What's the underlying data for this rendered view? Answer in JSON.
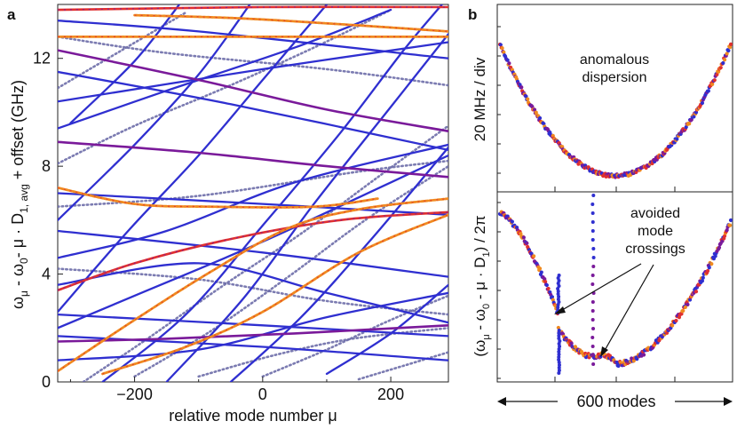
{
  "panel_a": {
    "letter": "a",
    "ylabel_main": "ω",
    "ylabel_sub1": "μ",
    "ylabel_mid1": " - ω",
    "ylabel_sub2": "0",
    "ylabel_mid2": "- μ · D",
    "ylabel_sub3": "1, avg",
    "ylabel_tail": " + offset (GHz)",
    "xlabel": "relative mode number μ"
  },
  "panel_b": {
    "letter": "b",
    "annotation_top_1": "anomalous",
    "annotation_top_2": "dispersion",
    "annotation_bottom_1": "avoided",
    "annotation_bottom_2": "mode",
    "annotation_bottom_3": "crossings",
    "ylabel_upper": "20 MHz / div",
    "ylabel_lower": "(ω",
    "ylabel_lower_sub1": "μ",
    "ylabel_lower_mid": " - ω",
    "ylabel_lower_sub2": "0",
    "ylabel_lower_mid2": " - μ · D",
    "ylabel_lower_sub3": "1",
    "ylabel_lower_tail": ") / 2π",
    "xlabel": "600 modes"
  },
  "colors": {
    "blue": "#2f2fd0",
    "slate": "#6d6da8",
    "purple": "#7a1a9a",
    "red": "#e03030",
    "orange": "#f08a20"
  },
  "chart_data": [
    {
      "type": "scatter",
      "panel": "a",
      "xlabel": "relative mode number μ",
      "ylabel": "ω_μ - ω_0 - μ · D_1, avg + offset (GHz)",
      "xlim": [
        -320,
        290
      ],
      "ylim": [
        0,
        14
      ],
      "xticks": [
        -200,
        0,
        200
      ],
      "xtick_labels": [
        "−200",
        "0",
        "200"
      ],
      "yticks": [
        0,
        4,
        8,
        12
      ],
      "ytick_labels": [
        "0",
        "4",
        "8",
        "12"
      ],
      "series": [
        {
          "color": "blue",
          "points": [
            [
              -320,
              13.4
            ],
            [
              -100,
              13.0
            ],
            [
              290,
              12.0
            ]
          ]
        },
        {
          "color": "blue",
          "points": [
            [
              -320,
              11.5
            ],
            [
              -50,
              10.3
            ],
            [
              290,
              8.6
            ]
          ]
        },
        {
          "color": "blue",
          "points": [
            [
              -320,
              10.4
            ],
            [
              0,
              11.6
            ],
            [
              290,
              12.6
            ]
          ]
        },
        {
          "color": "blue",
          "points": [
            [
              -320,
              7.0
            ],
            [
              0,
              6.6
            ],
            [
              290,
              6.2
            ]
          ]
        },
        {
          "color": "blue",
          "points": [
            [
              -320,
              5.6
            ],
            [
              0,
              4.8
            ],
            [
              290,
              3.9
            ]
          ]
        },
        {
          "color": "blue",
          "points": [
            [
              -320,
              3.6
            ],
            [
              -100,
              4.4
            ],
            [
              100,
              3.3
            ],
            [
              290,
              2.2
            ]
          ]
        },
        {
          "color": "blue",
          "points": [
            [
              -320,
              2.5
            ],
            [
              0,
              2.1
            ],
            [
              290,
              1.7
            ]
          ]
        },
        {
          "color": "blue",
          "points": [
            [
              -320,
              1.7
            ],
            [
              0,
              1.3
            ],
            [
              290,
              0.8
            ]
          ]
        },
        {
          "color": "blue",
          "points": [
            [
              -320,
              0.8
            ],
            [
              -100,
              1.2
            ],
            [
              100,
              2.4
            ],
            [
              290,
              3.3
            ]
          ]
        },
        {
          "color": "blue",
          "points": [
            [
              -320,
              4.6
            ],
            [
              -150,
              5.6
            ],
            [
              50,
              7.4
            ],
            [
              290,
              8.8
            ]
          ]
        },
        {
          "color": "blue",
          "points": [
            [
              -320,
              9.4
            ],
            [
              -150,
              10.8
            ],
            [
              50,
              12.4
            ],
            [
              200,
              13.8
            ]
          ]
        },
        {
          "color": "blue",
          "points": [
            [
              -320,
              2.0
            ],
            [
              -200,
              3.2
            ],
            [
              0,
              5.2
            ],
            [
              200,
              7.4
            ],
            [
              290,
              8.4
            ]
          ]
        },
        {
          "color": "blue",
          "points": [
            [
              -250,
              0.0
            ],
            [
              -120,
              2.5
            ],
            [
              0,
              5.8
            ],
            [
              120,
              9.2
            ],
            [
              220,
              12.3
            ],
            [
              280,
              14.0
            ]
          ]
        },
        {
          "color": "blue",
          "points": [
            [
              -150,
              0.0
            ],
            [
              -30,
              3.1
            ],
            [
              80,
              6.6
            ],
            [
              200,
              10.2
            ],
            [
              290,
              12.9
            ]
          ]
        },
        {
          "color": "blue",
          "points": [
            [
              -50,
              0.0
            ],
            [
              60,
              2.4
            ],
            [
              170,
              5.3
            ],
            [
              290,
              8.7
            ]
          ]
        },
        {
          "color": "blue",
          "points": [
            [
              -320,
              6.0
            ],
            [
              -200,
              8.8
            ],
            [
              -100,
              11.4
            ],
            [
              -20,
              14.0
            ]
          ]
        },
        {
          "color": "blue",
          "points": [
            [
              -320,
              2.6
            ],
            [
              -210,
              5.6
            ],
            [
              -100,
              8.4
            ],
            [
              0,
              11.2
            ],
            [
              100,
              14.0
            ]
          ]
        },
        {
          "color": "blue",
          "points": [
            [
              -300,
              9.6
            ],
            [
              -200,
              11.9
            ],
            [
              -130,
              14.0
            ]
          ]
        },
        {
          "color": "blue",
          "points": [
            [
              100,
              0.3
            ],
            [
              200,
              1.8
            ],
            [
              290,
              3.6
            ]
          ]
        },
        {
          "color": "slate",
          "points": [
            [
              -320,
              12.8
            ],
            [
              -150,
              12.2
            ],
            [
              100,
              11.6
            ],
            [
              290,
              11.0
            ]
          ]
        },
        {
          "color": "slate",
          "points": [
            [
              -320,
              6.5
            ],
            [
              -100,
              6.9
            ],
            [
              150,
              7.8
            ],
            [
              290,
              8.2
            ]
          ]
        },
        {
          "color": "slate",
          "points": [
            [
              -320,
              4.2
            ],
            [
              -100,
              3.8
            ],
            [
              100,
              3.0
            ],
            [
              290,
              2.5
            ]
          ]
        },
        {
          "color": "slate",
          "points": [
            [
              -280,
              0.0
            ],
            [
              -180,
              1.6
            ],
            [
              -60,
              3.6
            ],
            [
              60,
              5.5
            ],
            [
              180,
              7.6
            ],
            [
              290,
              9.5
            ]
          ]
        },
        {
          "color": "slate",
          "points": [
            [
              -200,
              0.2
            ],
            [
              -80,
              1.9
            ],
            [
              40,
              3.9
            ],
            [
              160,
              6.0
            ],
            [
              290,
              8.0
            ]
          ]
        },
        {
          "color": "slate",
          "points": [
            [
              -320,
              8.1
            ],
            [
              -200,
              9.5
            ],
            [
              -60,
              10.9
            ],
            [
              80,
              12.4
            ],
            [
              200,
              13.8
            ]
          ]
        },
        {
          "color": "slate",
          "points": [
            [
              0,
              0.2
            ],
            [
              100,
              1.2
            ],
            [
              200,
              2.3
            ],
            [
              290,
              3.2
            ]
          ]
        },
        {
          "color": "slate",
          "points": [
            [
              -320,
              10.9
            ],
            [
              -220,
              12.3
            ],
            [
              -120,
              13.7
            ]
          ]
        },
        {
          "color": "slate",
          "points": [
            [
              -100,
              0.2
            ],
            [
              20,
              1.0
            ],
            [
              140,
              1.6
            ],
            [
              290,
              2.0
            ]
          ]
        },
        {
          "color": "slate",
          "points": [
            [
              150,
              0.1
            ],
            [
              220,
              0.6
            ],
            [
              290,
              1.1
            ]
          ]
        },
        {
          "color": "purple",
          "points": [
            [
              -320,
              8.9
            ],
            [
              -100,
              8.5
            ],
            [
              100,
              8.0
            ],
            [
              290,
              7.6
            ]
          ]
        },
        {
          "color": "purple",
          "points": [
            [
              -320,
              12.3
            ],
            [
              -100,
              11.2
            ],
            [
              100,
              10.1
            ],
            [
              290,
              9.3
            ]
          ]
        },
        {
          "color": "purple",
          "points": [
            [
              -320,
              1.5
            ],
            [
              -150,
              1.6
            ],
            [
              50,
              1.8
            ],
            [
              290,
              2.1
            ]
          ]
        },
        {
          "color": "red",
          "points": [
            [
              -320,
              13.8
            ],
            [
              0,
              13.9
            ],
            [
              290,
              13.9
            ]
          ]
        },
        {
          "color": "red",
          "points": [
            [
              -320,
              3.4
            ],
            [
              -200,
              4.4
            ],
            [
              -50,
              5.3
            ],
            [
              120,
              6.0
            ],
            [
              290,
              6.3
            ]
          ]
        },
        {
          "color": "orange",
          "points": [
            [
              -320,
              12.8
            ],
            [
              -150,
              12.8
            ],
            [
              290,
              12.8
            ]
          ]
        },
        {
          "color": "orange",
          "points": [
            [
              -320,
              0.4
            ],
            [
              -200,
              2.3
            ],
            [
              -80,
              4.1
            ],
            [
              40,
              5.7
            ],
            [
              150,
              6.4
            ],
            [
              290,
              6.8
            ]
          ]
        },
        {
          "color": "orange",
          "points": [
            [
              -320,
              7.2
            ],
            [
              -200,
              6.6
            ],
            [
              -80,
              6.5
            ],
            [
              80,
              6.5
            ],
            [
              180,
              6.8
            ]
          ]
        },
        {
          "color": "orange",
          "points": [
            [
              -200,
              13.6
            ],
            [
              -50,
              13.5
            ],
            [
              100,
              13.3
            ],
            [
              290,
              13.0
            ]
          ]
        },
        {
          "color": "orange",
          "points": [
            [
              -250,
              0.3
            ],
            [
              -120,
              1.3
            ],
            [
              0,
              2.6
            ],
            [
              150,
              4.8
            ],
            [
              290,
              6.2
            ]
          ]
        }
      ]
    },
    {
      "type": "scatter",
      "panel": "b-upper",
      "annotation": "anomalous dispersion",
      "ylabel": "20 MHz / div",
      "xlim": [
        -300,
        300
      ],
      "series": [
        {
          "name": "",
          "shape": "parabola",
          "vertex": [
            0,
            0
          ],
          "edge_value": 1.0
        }
      ]
    },
    {
      "type": "scatter",
      "panel": "b-lower",
      "annotation": "avoided mode crossings",
      "ylabel": "(ω_μ - ω_0 - μ · D_1) / 2π",
      "xlabel": "600 modes",
      "xlim": [
        -300,
        300
      ],
      "series": [
        {
          "name": "",
          "shape": "parabola-with-crossings",
          "crossings_at": [
            -148,
            -58,
            0
          ]
        }
      ]
    }
  ]
}
